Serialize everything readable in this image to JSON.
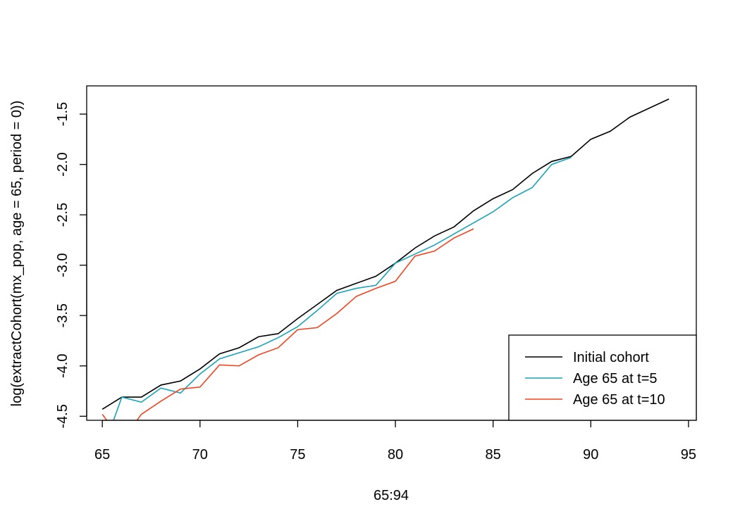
{
  "chart_data": {
    "type": "line",
    "title": "",
    "xlabel": "65:94",
    "ylabel": "log(extractCohort(mx_pop, age = 65, period = 0))",
    "xlim": [
      64.2,
      95.4
    ],
    "ylim": [
      -4.54,
      -1.22
    ],
    "x_ticks": [
      65,
      70,
      75,
      80,
      85,
      90,
      95
    ],
    "x_tick_labels": [
      "65",
      "70",
      "75",
      "80",
      "85",
      "90",
      "95"
    ],
    "y_ticks": [
      -4.5,
      -4.0,
      -3.5,
      -3.0,
      -2.5,
      -2.0,
      -1.5
    ],
    "y_tick_labels": [
      "-4.5",
      "-4.0",
      "-3.5",
      "-3.0",
      "-2.5",
      "-2.0",
      "-1.5"
    ],
    "grid": false,
    "legend_position": "bottom-right",
    "series": [
      {
        "name": "Initial cohort",
        "color": "#000000",
        "x": [
          65,
          66,
          67,
          68,
          69,
          70,
          71,
          72,
          73,
          74,
          75,
          76,
          77,
          78,
          79,
          80,
          81,
          82,
          83,
          84,
          85,
          86,
          87,
          88,
          89,
          90,
          91,
          92,
          93,
          94
        ],
        "y": [
          -4.43,
          -4.31,
          -4.31,
          -4.19,
          -4.15,
          -4.03,
          -3.88,
          -3.82,
          -3.71,
          -3.68,
          -3.53,
          -3.39,
          -3.25,
          -3.18,
          -3.11,
          -2.98,
          -2.83,
          -2.71,
          -2.62,
          -2.46,
          -2.34,
          -2.25,
          -2.09,
          -1.97,
          -1.92,
          -1.75,
          -1.67,
          -1.53,
          -1.44,
          -1.35
        ]
      },
      {
        "name": "Age 65 at t=5",
        "color": "#17a3b8",
        "x": [
          65.5,
          66,
          67,
          68,
          69,
          70,
          71,
          72,
          73,
          74,
          75,
          76,
          77,
          78,
          79,
          80,
          81,
          82,
          83,
          84,
          85,
          86,
          87,
          88,
          89
        ],
        "y": [
          -4.58,
          -4.31,
          -4.36,
          -4.22,
          -4.27,
          -4.08,
          -3.93,
          -3.87,
          -3.81,
          -3.72,
          -3.61,
          -3.45,
          -3.28,
          -3.23,
          -3.2,
          -2.98,
          -2.89,
          -2.8,
          -2.69,
          -2.58,
          -2.47,
          -2.33,
          -2.23,
          -2.0,
          -1.93
        ]
      },
      {
        "name": "Age 65 at t=10",
        "color": "#f2431d",
        "x": [
          65,
          65.3,
          66.7,
          67,
          68,
          69,
          70,
          71,
          72,
          73,
          74,
          75,
          76,
          77,
          78,
          79,
          80,
          81,
          82,
          83,
          84
        ],
        "y": [
          -4.48,
          -4.56,
          -4.56,
          -4.48,
          -4.35,
          -4.23,
          -4.21,
          -3.99,
          -4.0,
          -3.89,
          -3.82,
          -3.64,
          -3.62,
          -3.48,
          -3.31,
          -3.23,
          -3.16,
          -2.91,
          -2.86,
          -2.73,
          -2.64
        ]
      }
    ]
  }
}
